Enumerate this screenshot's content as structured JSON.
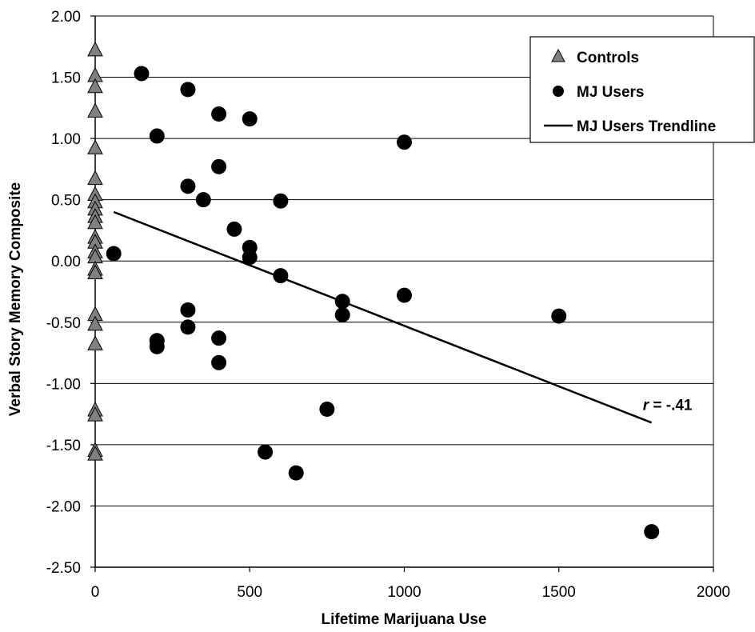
{
  "chart_data": {
    "type": "scatter",
    "title": "",
    "xlabel": "Lifetime Marijuana Use",
    "ylabel": "Verbal Story Memory Composite",
    "xlim": [
      0,
      2000
    ],
    "ylim": [
      -2.5,
      2.0
    ],
    "x_ticks": [
      "0",
      "500",
      "1000",
      "1500",
      "2000"
    ],
    "y_ticks": [
      "2.00",
      "1.50",
      "1.00",
      "0.50",
      "0.00",
      "-0.50",
      "-1.00",
      "-1.50",
      "-2.00",
      "-2.50"
    ],
    "grid": "horizontal",
    "legend_position": "top-right",
    "series": [
      {
        "name": "Controls",
        "marker": "triangle",
        "color": "#808080",
        "points": [
          [
            0,
            1.72
          ],
          [
            0,
            1.51
          ],
          [
            0,
            1.42
          ],
          [
            0,
            1.22
          ],
          [
            0,
            0.92
          ],
          [
            0,
            0.67
          ],
          [
            0,
            0.54
          ],
          [
            0,
            0.48
          ],
          [
            0,
            0.42
          ],
          [
            0,
            0.36
          ],
          [
            0,
            0.31
          ],
          [
            0,
            0.19
          ],
          [
            0,
            0.15
          ],
          [
            0,
            0.07
          ],
          [
            0,
            0.03
          ],
          [
            0,
            -0.07
          ],
          [
            0,
            -0.1
          ],
          [
            0,
            -0.44
          ],
          [
            0,
            -0.52
          ],
          [
            0,
            -0.68
          ],
          [
            0,
            -1.22
          ],
          [
            0,
            -1.26
          ],
          [
            0,
            -1.55
          ],
          [
            0,
            -1.58
          ]
        ]
      },
      {
        "name": "MJ Users",
        "marker": "circle",
        "color": "#000000",
        "points": [
          [
            150,
            1.53
          ],
          [
            300,
            1.4
          ],
          [
            200,
            1.02
          ],
          [
            400,
            1.2
          ],
          [
            500,
            1.16
          ],
          [
            1000,
            0.97
          ],
          [
            400,
            0.77
          ],
          [
            300,
            0.61
          ],
          [
            350,
            0.5
          ],
          [
            600,
            0.49
          ],
          [
            450,
            0.26
          ],
          [
            60,
            0.06
          ],
          [
            500,
            0.11
          ],
          [
            500,
            0.03
          ],
          [
            600,
            -0.12
          ],
          [
            800,
            -0.33
          ],
          [
            800,
            -0.44
          ],
          [
            1000,
            -0.28
          ],
          [
            1500,
            -0.45
          ],
          [
            300,
            -0.4
          ],
          [
            300,
            -0.54
          ],
          [
            200,
            -0.65
          ],
          [
            200,
            -0.7
          ],
          [
            400,
            -0.63
          ],
          [
            400,
            -0.83
          ],
          [
            750,
            -1.21
          ],
          [
            550,
            -1.56
          ],
          [
            650,
            -1.73
          ],
          [
            1800,
            -2.21
          ]
        ]
      }
    ],
    "trendline": {
      "name": "MJ Users Trendline",
      "color": "#000000",
      "x": [
        60,
        1800
      ],
      "y": [
        0.4,
        -1.32
      ]
    },
    "annotation": {
      "italic": "r",
      "text": " = -.41",
      "x": 1800,
      "y": -1.17
    }
  }
}
